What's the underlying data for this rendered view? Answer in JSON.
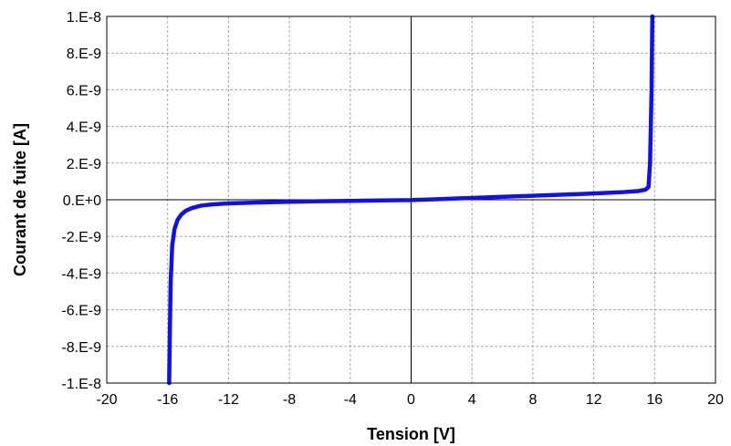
{
  "chart_data": {
    "type": "line",
    "title": "",
    "xlabel": "Tension [V]",
    "ylabel": "Courant de fuite [A]",
    "xlim": [
      -20,
      20
    ],
    "ylim": [
      -1e-08,
      1e-08
    ],
    "x_ticks": [
      -20,
      -16,
      -12,
      -8,
      -4,
      0,
      4,
      8,
      12,
      16,
      20
    ],
    "x_tick_labels": [
      "-20",
      "-16",
      "-12",
      "-8",
      "-4",
      "0",
      "4",
      "8",
      "12",
      "16",
      "20"
    ],
    "y_ticks": [
      1e-08,
      8e-09,
      6e-09,
      4e-09,
      2e-09,
      0,
      -2e-09,
      -4e-09,
      -6e-09,
      -8e-09,
      -1e-08
    ],
    "y_tick_labels": [
      "1.E-8",
      "8.E-9",
      "6.E-9",
      "4.E-9",
      "2.E-9",
      "0.E+0",
      "-2.E-9",
      "-4.E-9",
      "-6.E-9",
      "-8.E-9",
      "-1.E-8"
    ],
    "grid": true,
    "grid_style": "dashed",
    "legend": "none",
    "series_color": "#1010ee",
    "series": [
      {
        "x": [
          -15.9,
          -15.85,
          -15.8,
          -15.7,
          -15.55,
          -15.35,
          -15.1,
          -14.8,
          -14.4,
          -13.8,
          -13.0,
          -12.0,
          -10.0,
          -8.0,
          -6.0,
          -4.0,
          -2.0,
          0.0,
          2.0,
          4.0,
          6.0,
          8.0,
          10.0,
          12.0,
          14.0,
          15.0,
          15.4,
          15.6,
          15.7,
          15.8,
          15.85
        ],
        "y": [
          -1e-08,
          -7e-09,
          -4.5e-09,
          -2.5e-09,
          -1.6e-09,
          -1.1e-09,
          -8e-10,
          -6e-10,
          -4.5e-10,
          -3.2e-10,
          -2.5e-10,
          -2e-10,
          -1.5e-10,
          -1.1e-10,
          -8e-11,
          -6e-11,
          -4e-11,
          -2e-11,
          4e-11,
          1e-10,
          1.6e-10,
          2.2e-10,
          2.8e-10,
          3.4e-10,
          4.2e-10,
          4.8e-10,
          5.5e-10,
          7e-10,
          2e-09,
          6e-09,
          1e-08
        ]
      }
    ]
  }
}
